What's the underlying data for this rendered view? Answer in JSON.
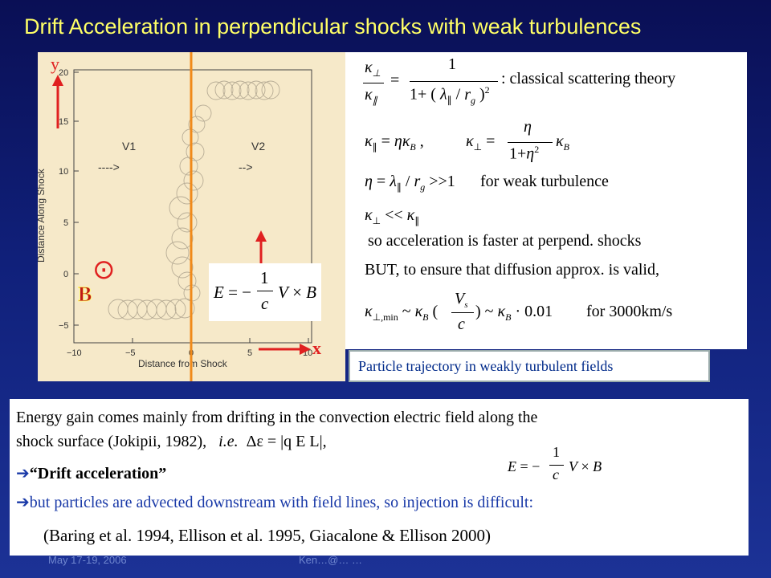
{
  "title": "Drift Acceleration in perpendicular shocks with weak turbulences",
  "plot": {
    "x_axis_label": "Distance from Shock",
    "y_axis_label": "Distance Along Shock",
    "x_ticks": [
      "−10",
      "−5",
      "0",
      "5",
      "10"
    ],
    "y_ticks": [
      "20",
      "15",
      "10",
      "5",
      "0",
      "−5"
    ],
    "v1_label": "V1",
    "v1_arrow": "---->",
    "v2_label": "V2",
    "v2_arrow": "-->",
    "y_arrow_label": "y",
    "x_arrow_label": "x",
    "b_label": "B",
    "b_symbol": "⊙",
    "e_field_eq": "E = −(1/c) V × B",
    "colors": {
      "shock_line": "#f08a1a",
      "arrows": "#e02020",
      "trajectory": "#b8ad96"
    }
  },
  "equations": {
    "eq1_comment": ": classical scattering theory",
    "eq3_comment": "for weak turbulence",
    "eq5_text": "so acceleration is faster at perpend. shocks",
    "eq6_text": "BUT, to ensure that diffusion approx. is valid,",
    "eq7_factor": "0.01",
    "eq7_comment": "for 3000km/s"
  },
  "caption": "Particle trajectory in weakly turbulent fields",
  "textbox": {
    "line1": "Energy gain comes mainly from drifting in the convection electric field along the",
    "line2a": "shock surface (Jokipii, 1982),",
    "line2b": "i.e.",
    "line2c": "Δε = |q E L|,",
    "line3": "“Drift acceleration”",
    "line4": "but particles are advected downstream with field lines, so injection is difficult:",
    "line5": "(Baring et al. 1994, Ellison et al. 1995, Giacalone & Ellison 2000)",
    "arrow_glyph": "➔"
  },
  "footer": {
    "left": "May 17-19, 2006",
    "center": "Ken…@… …"
  }
}
